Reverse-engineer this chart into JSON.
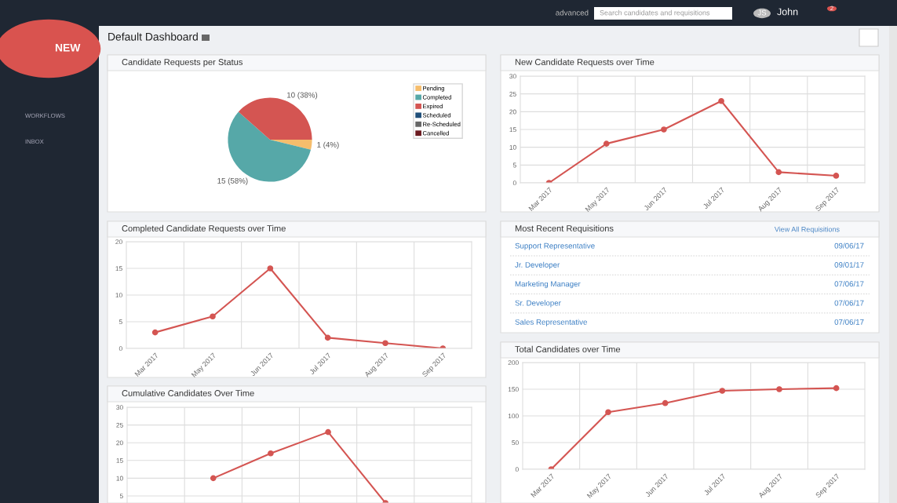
{
  "chart_data": [
    {
      "type": "other",
      "title": "Default Dashboard",
      "annotations": [
        "NEW",
        "WORKFLOWS",
        "INBOX",
        "advanced",
        "Search candidates and requisitions",
        "JS",
        "John",
        "2"
      ]
    },
    {
      "type": "pie",
      "title": "Candidate Requests per Status",
      "categories": [
        "Pending",
        "Completed",
        "Expired",
        "Scheduled",
        "Re-Scheduled",
        "Cancelled"
      ],
      "values": [
        1,
        15,
        10,
        0,
        0,
        0
      ],
      "colors": [
        "#f6bd6c",
        "#56a8a8",
        "#d45552",
        "#1f4e79",
        "#666666",
        "#6b1a1f"
      ],
      "value_labels": [
        "1 (4%)",
        "15 (58%)",
        "10 (38%)",
        null,
        null,
        null
      ],
      "legend": "top right"
    },
    {
      "type": "line",
      "title": "New Candidate Requests over Time",
      "categories": [
        "Mar 2017",
        "May 2017",
        "Jun 2017",
        "Jul 2017",
        "Aug 2017",
        "Sep 2017"
      ],
      "values": [
        0,
        11,
        15,
        23,
        3,
        2
      ],
      "color": "#d45552",
      "ylim": [
        0,
        30
      ],
      "yticks": [
        0,
        5,
        10,
        15,
        20,
        25,
        30
      ],
      "grid": true,
      "marker": "circle"
    },
    {
      "type": "line",
      "title": "Completed Candidate Requests over Time",
      "categories": [
        "Mar 2017",
        "May 2017",
        "Jun 2017",
        "Jul 2017",
        "Aug 2017",
        "Sep 2017"
      ],
      "values": [
        3,
        6,
        15,
        2,
        1,
        0
      ],
      "color": "#d45552",
      "ylim": [
        0,
        20
      ],
      "yticks": [
        0,
        5,
        10,
        15,
        20
      ],
      "grid": true,
      "marker": "circle"
    },
    {
      "type": "other",
      "title": "Most Recent Requisitions",
      "annotations": [
        "View All Requisitions",
        "Support Representative",
        "09/06/17",
        "Jr. Developer",
        "09/01/17",
        "Marketing Manager",
        "07/06/17",
        "Sr. Developer",
        "07/06/17",
        "Sales Representative",
        "07/06/17"
      ]
    },
    {
      "type": "line",
      "title": "Total Candidates over Time",
      "categories": [
        "Mar 2017",
        "May 2017",
        "Jun 2017",
        "Jul 2017",
        "Aug 2017",
        "Sep 2017"
      ],
      "values": [
        0,
        107,
        124,
        147,
        150,
        152
      ],
      "color": "#d45552",
      "ylim": [
        0,
        200
      ],
      "yticks": [
        0,
        50,
        100,
        150,
        200
      ],
      "grid": true,
      "marker": "circle"
    },
    {
      "type": "line",
      "title": "Cumulative Candidates Over Time",
      "categories": [
        null,
        null,
        null,
        null,
        null,
        null
      ],
      "values": [
        null,
        10,
        17,
        23,
        3,
        null
      ],
      "color": "#d45552",
      "ylim": [
        3,
        30
      ],
      "yticks": [
        5,
        10,
        15,
        20,
        25,
        30
      ],
      "grid": true,
      "marker": "circle",
      "tick_labels": "y"
    }
  ]
}
